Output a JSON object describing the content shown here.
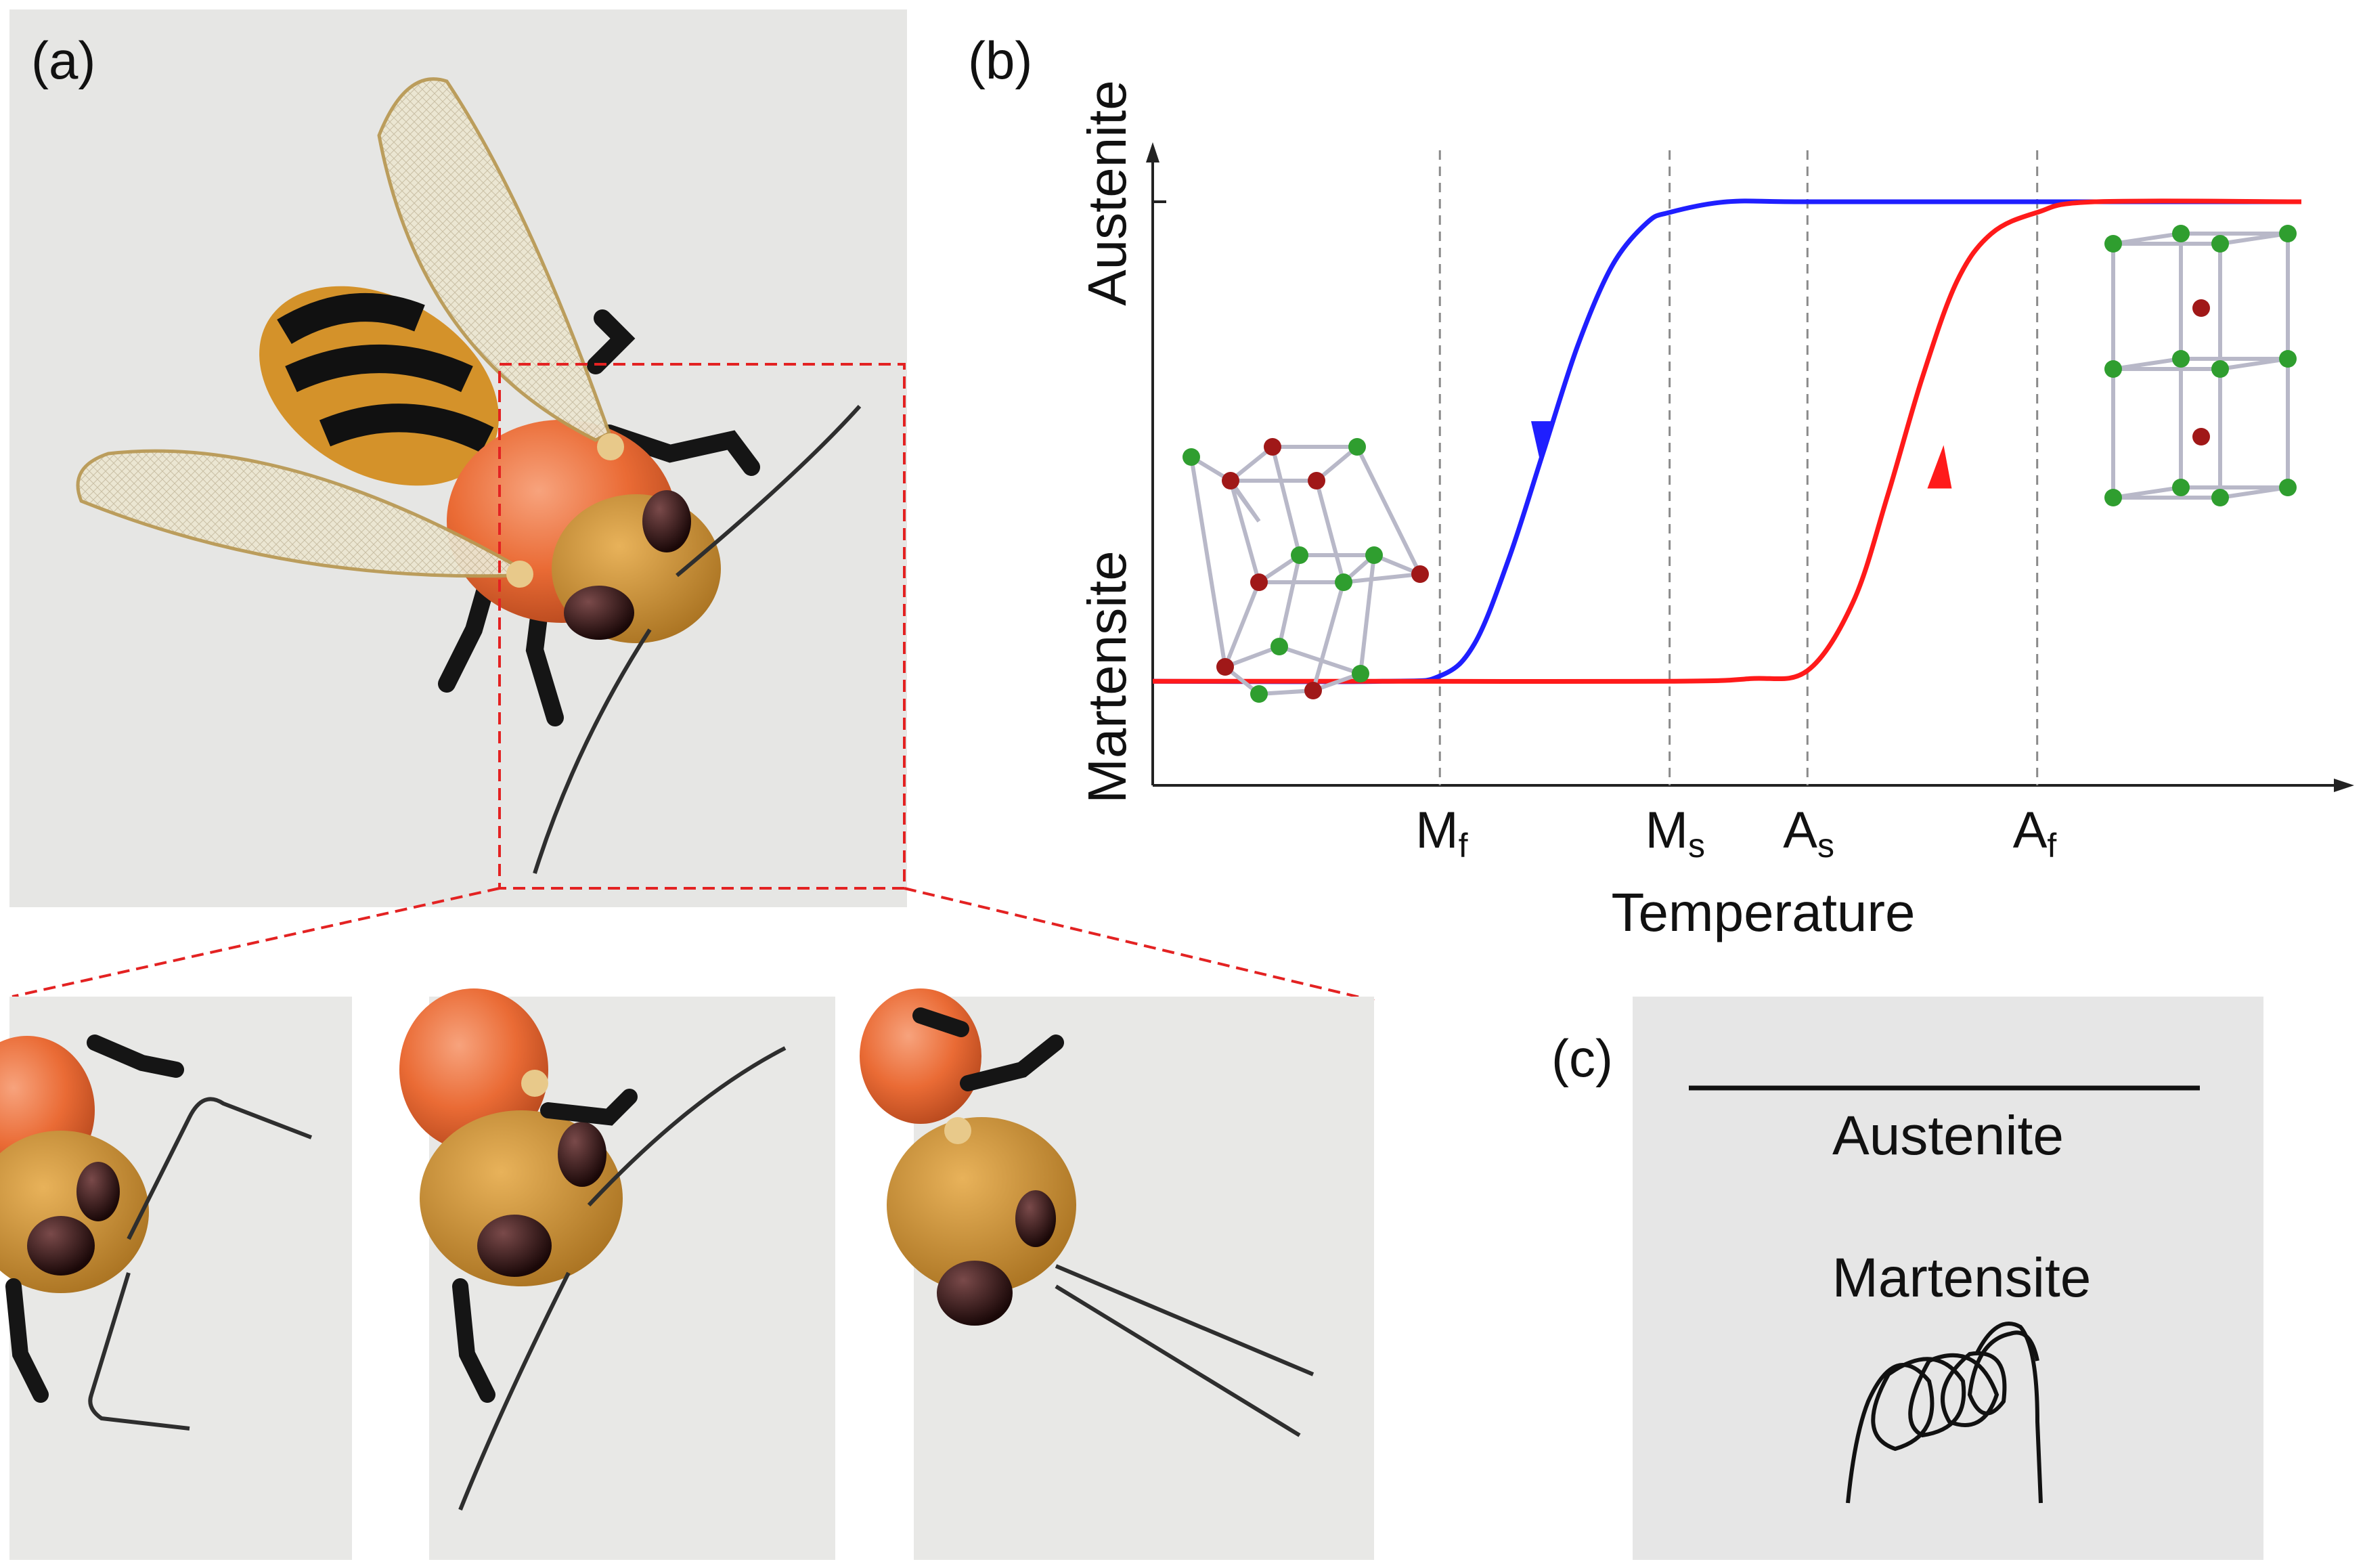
{
  "panels": {
    "a": {
      "label": "(a)"
    },
    "b": {
      "label": "(b)"
    },
    "c": {
      "label": "(c)",
      "austenite_text": "Austenite",
      "martensite_text": "Martensite"
    }
  },
  "chart_data": {
    "type": "line",
    "title": "",
    "xlabel": "Temperature",
    "ylabel_top": "Austenite",
    "ylabel_bottom": "Martensite",
    "x_ticks": [
      {
        "main": "M",
        "sub": "f"
      },
      {
        "main": "M",
        "sub": "s"
      },
      {
        "main": "A",
        "sub": "s"
      },
      {
        "main": "A",
        "sub": "f"
      }
    ],
    "xlim": [
      0,
      100
    ],
    "ylim": [
      0,
      100
    ],
    "transition_temperatures": {
      "Mf": 25,
      "Ms": 45,
      "As": 57,
      "Af": 77
    },
    "series": [
      {
        "name": "cooling",
        "color": "#1f1fff",
        "direction": "decreasing temperature",
        "x": [
          0,
          20,
          25,
          28,
          31,
          34,
          37,
          40,
          43,
          45,
          50,
          57,
          77,
          100
        ],
        "y": [
          10,
          10,
          11,
          17,
          33,
          53,
          73,
          88,
          96,
          98,
          100,
          100,
          100,
          100
        ]
      },
      {
        "name": "heating",
        "color": "#ff1a1a",
        "direction": "increasing temperature",
        "x": [
          0,
          20,
          45,
          52,
          57,
          61,
          64,
          67,
          70,
          73,
          77,
          82,
          100
        ],
        "y": [
          10,
          10,
          10,
          10.5,
          12,
          25,
          45,
          67,
          85,
          94,
          98,
          100,
          100
        ]
      }
    ],
    "annotations": [
      "martensite monoclinic crystal structure",
      "austenite cubic crystal structure"
    ]
  },
  "colors": {
    "cooling": "#1f1fff",
    "heating": "#ff1a1a",
    "dashed_box": "#e32222",
    "atom_green": "#2f9e2f",
    "atom_red": "#a01818",
    "bond": "#b8b8c8"
  }
}
